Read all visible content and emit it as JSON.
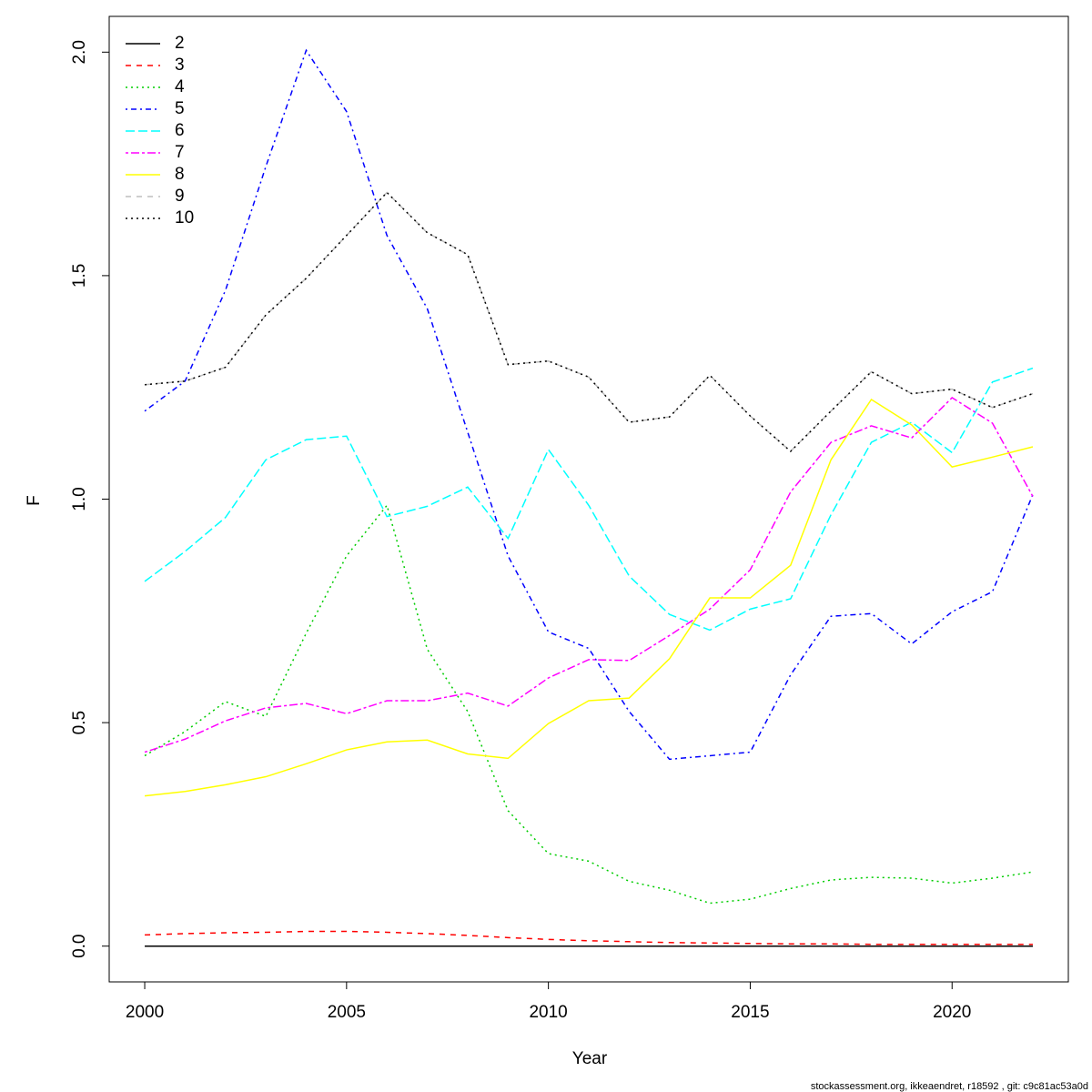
{
  "chart_data": {
    "type": "line",
    "xlabel": "Year",
    "ylabel": "F",
    "footer": "stockassessment.org, ikkeaendret, r18592 , git: c9c81ac53a0d",
    "x": [
      2000,
      2001,
      2002,
      2003,
      2004,
      2005,
      2006,
      2007,
      2008,
      2009,
      2010,
      2011,
      2012,
      2013,
      2014,
      2015,
      2016,
      2017,
      2018,
      2019,
      2020,
      2021,
      2022
    ],
    "xlim": [
      1999.12,
      2022.88
    ],
    "xticks": [
      2000,
      2005,
      2010,
      2015,
      2020
    ],
    "ylim": [
      -0.08,
      2.08
    ],
    "yticks": [
      {
        "value": 0,
        "label": "0.0"
      },
      {
        "value": 0.5,
        "label": "0.5"
      },
      {
        "value": 1,
        "label": "1.0"
      },
      {
        "value": 1.5,
        "label": "1.5"
      },
      {
        "value": 2,
        "label": "2.0"
      }
    ],
    "legend": "topleft",
    "series": [
      {
        "name": "2",
        "color": "#000000",
        "linestyle": "solid",
        "values": [
          0,
          0,
          0,
          0,
          0,
          0,
          0,
          0,
          0,
          0,
          0,
          0,
          0,
          0,
          0,
          0,
          0,
          0,
          0,
          0,
          0,
          0,
          0
        ]
      },
      {
        "name": "3",
        "color": "#ff0000",
        "linestyle": "dashed",
        "values": [
          0.025,
          0.028,
          0.03,
          0.031,
          0.033,
          0.033,
          0.031,
          0.028,
          0.024,
          0.019,
          0.015,
          0.012,
          0.01,
          0.008,
          0.007,
          0.006,
          0.005,
          0.005,
          0.004,
          0.004,
          0.004,
          0.004,
          0.004
        ]
      },
      {
        "name": "4",
        "color": "#00cd00",
        "linestyle": "dotted",
        "values": [
          0.426,
          0.48,
          0.547,
          0.514,
          0.7,
          0.873,
          0.986,
          0.664,
          0.525,
          0.303,
          0.207,
          0.19,
          0.145,
          0.125,
          0.096,
          0.105,
          0.129,
          0.148,
          0.154,
          0.152,
          0.141,
          0.152,
          0.166
        ]
      },
      {
        "name": "5",
        "color": "#0000ff",
        "linestyle": "dotdash",
        "values": [
          1.197,
          1.264,
          1.467,
          1.744,
          2.004,
          1.867,
          1.59,
          1.426,
          1.15,
          0.873,
          0.703,
          0.666,
          0.525,
          0.418,
          0.426,
          0.434,
          0.607,
          0.738,
          0.744,
          0.676,
          0.748,
          0.793,
          1.01
        ]
      },
      {
        "name": "6",
        "color": "#00ffff",
        "linestyle": "longdash",
        "values": [
          0.816,
          0.883,
          0.959,
          1.088,
          1.133,
          1.141,
          0.961,
          0.984,
          1.027,
          0.912,
          1.111,
          0.986,
          0.828,
          0.742,
          0.707,
          0.754,
          0.777,
          0.965,
          1.127,
          1.172,
          1.104,
          1.262,
          1.293
        ]
      },
      {
        "name": "7",
        "color": "#ff00ff",
        "linestyle": "twodash",
        "values": [
          0.434,
          0.463,
          0.504,
          0.533,
          0.543,
          0.52,
          0.549,
          0.549,
          0.566,
          0.537,
          0.6,
          0.641,
          0.639,
          0.695,
          0.754,
          0.842,
          1.016,
          1.127,
          1.164,
          1.137,
          1.227,
          1.17,
          1.006
        ]
      },
      {
        "name": "8",
        "color": "#ffff00",
        "linestyle": "solid",
        "values": [
          0.336,
          0.346,
          0.361,
          0.379,
          0.408,
          0.439,
          0.457,
          0.461,
          0.43,
          0.42,
          0.498,
          0.549,
          0.555,
          0.643,
          0.779,
          0.779,
          0.852,
          1.088,
          1.223,
          1.166,
          1.072,
          1.094,
          1.117
        ]
      },
      {
        "name": "9",
        "color": "#bebebe",
        "linestyle": "dashed",
        "values": [
          1.256,
          1.264,
          1.295,
          1.412,
          1.494,
          1.59,
          1.686,
          1.596,
          1.547,
          1.301,
          1.309,
          1.273,
          1.172,
          1.184,
          1.277,
          1.186,
          1.107,
          1.197,
          1.285,
          1.236,
          1.246,
          1.205,
          1.236
        ]
      },
      {
        "name": "10",
        "color": "#000000",
        "linestyle": "dotted",
        "values": [
          1.256,
          1.264,
          1.295,
          1.412,
          1.494,
          1.59,
          1.686,
          1.596,
          1.547,
          1.301,
          1.309,
          1.273,
          1.172,
          1.184,
          1.277,
          1.186,
          1.107,
          1.197,
          1.285,
          1.236,
          1.246,
          1.205,
          1.236
        ]
      }
    ]
  }
}
